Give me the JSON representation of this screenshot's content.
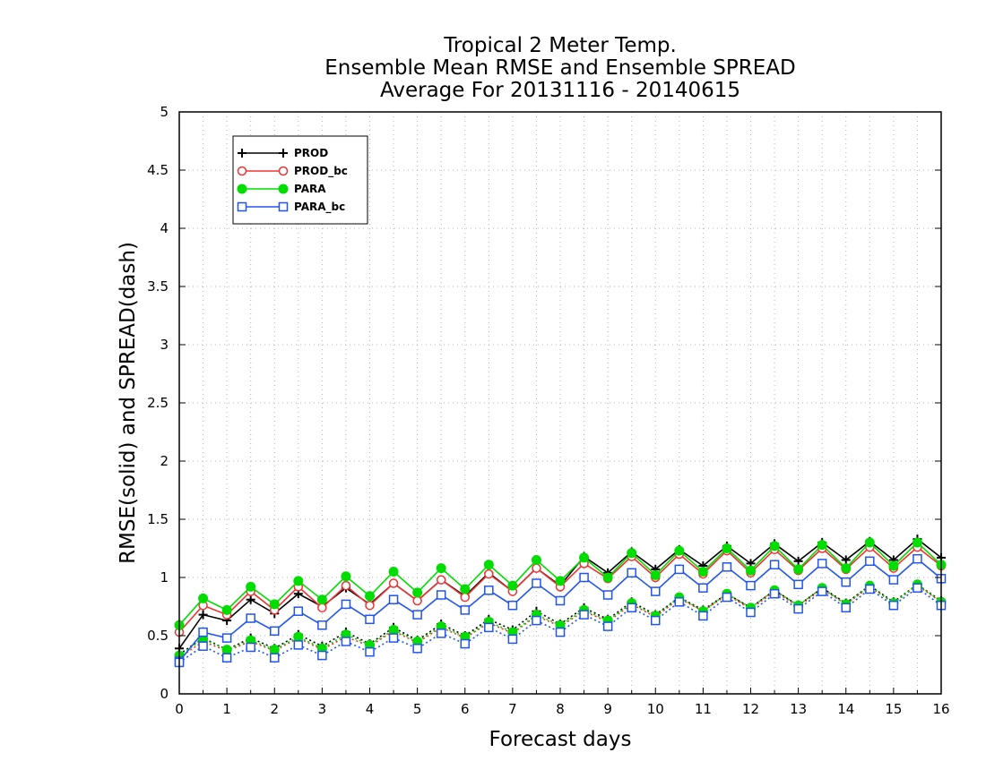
{
  "chart_data": {
    "type": "line",
    "title": [
      "Tropical 2 Meter Temp.",
      "Ensemble Mean RMSE and Ensemble SPREAD",
      "Average For 20131116 - 20140615"
    ],
    "xlabel": "Forecast days",
    "ylabel": "RMSE(solid) and SPREAD(dash)",
    "xlim": [
      0,
      16
    ],
    "ylim": [
      0,
      5
    ],
    "x_ticks": [
      "0",
      "1",
      "2",
      "3",
      "4",
      "5",
      "6",
      "7",
      "8",
      "9",
      "10",
      "11",
      "12",
      "13",
      "14",
      "15",
      "16"
    ],
    "y_ticks": [
      "0",
      "0.5",
      "1",
      "1.5",
      "2",
      "2.5",
      "3",
      "3.5",
      "4",
      "4.5",
      "5"
    ],
    "grid": true,
    "legend_position": "top-left",
    "x": [
      0,
      0.5,
      1,
      1.5,
      2,
      2.5,
      3,
      3.5,
      4,
      4.5,
      5,
      5.5,
      6,
      6.5,
      7,
      7.5,
      8,
      8.5,
      9,
      9.5,
      10,
      10.5,
      11,
      11.5,
      12,
      12.5,
      13,
      13.5,
      14,
      14.5,
      15,
      15.5,
      16
    ],
    "series": [
      {
        "name": "PROD",
        "color": "#000000",
        "marker": "plus",
        "rmse": [
          0.39,
          0.68,
          0.63,
          0.81,
          0.69,
          0.86,
          0.75,
          0.91,
          0.77,
          0.95,
          0.8,
          0.98,
          0.84,
          1.04,
          0.88,
          1.08,
          0.93,
          1.18,
          1.04,
          1.22,
          1.07,
          1.24,
          1.1,
          1.27,
          1.12,
          1.29,
          1.14,
          1.3,
          1.15,
          1.31,
          1.15,
          1.33,
          1.17
        ],
        "spread": [
          0.34,
          0.48,
          0.38,
          0.48,
          0.39,
          0.51,
          0.41,
          0.53,
          0.43,
          0.57,
          0.46,
          0.6,
          0.5,
          0.64,
          0.55,
          0.71,
          0.6,
          0.74,
          0.64,
          0.79,
          0.68,
          0.83,
          0.72,
          0.86,
          0.74,
          0.89,
          0.76,
          0.91,
          0.78,
          0.93,
          0.79,
          0.94,
          0.8
        ]
      },
      {
        "name": "PROD_bc",
        "color": "#ee3333",
        "marker": "circle",
        "rmse": [
          0.53,
          0.76,
          0.68,
          0.88,
          0.72,
          0.92,
          0.74,
          0.93,
          0.76,
          0.95,
          0.8,
          0.98,
          0.83,
          1.03,
          0.88,
          1.08,
          0.92,
          1.12,
          0.99,
          1.18,
          1.0,
          1.2,
          1.03,
          1.23,
          1.04,
          1.24,
          1.06,
          1.25,
          1.07,
          1.26,
          1.08,
          1.26,
          1.1
        ],
        "spread": [
          0.31,
          0.45,
          0.37,
          0.45,
          0.37,
          0.48,
          0.38,
          0.49,
          0.41,
          0.54,
          0.44,
          0.57,
          0.48,
          0.61,
          0.52,
          0.67,
          0.58,
          0.71,
          0.62,
          0.77,
          0.66,
          0.82,
          0.71,
          0.85,
          0.73,
          0.88,
          0.75,
          0.9,
          0.77,
          0.92,
          0.78,
          0.93,
          0.79
        ]
      },
      {
        "name": "PARA",
        "color": "#00dd00",
        "marker": "filled-circle",
        "rmse": [
          0.59,
          0.82,
          0.72,
          0.92,
          0.77,
          0.97,
          0.81,
          1.01,
          0.84,
          1.05,
          0.87,
          1.08,
          0.9,
          1.11,
          0.93,
          1.15,
          0.97,
          1.17,
          1.0,
          1.21,
          1.02,
          1.23,
          1.05,
          1.25,
          1.06,
          1.27,
          1.07,
          1.28,
          1.08,
          1.3,
          1.1,
          1.3,
          1.11
        ],
        "spread": [
          0.33,
          0.47,
          0.38,
          0.46,
          0.38,
          0.49,
          0.39,
          0.51,
          0.42,
          0.55,
          0.45,
          0.58,
          0.49,
          0.62,
          0.53,
          0.68,
          0.59,
          0.72,
          0.63,
          0.78,
          0.67,
          0.83,
          0.71,
          0.86,
          0.74,
          0.89,
          0.76,
          0.91,
          0.77,
          0.93,
          0.78,
          0.94,
          0.79
        ]
      },
      {
        "name": "PARA_bc",
        "color": "#2255ee",
        "marker": "square",
        "rmse": [
          0.28,
          0.53,
          0.48,
          0.65,
          0.54,
          0.71,
          0.59,
          0.77,
          0.64,
          0.81,
          0.68,
          0.85,
          0.72,
          0.89,
          0.76,
          0.95,
          0.8,
          1.0,
          0.85,
          1.04,
          0.88,
          1.07,
          0.91,
          1.09,
          0.93,
          1.11,
          0.94,
          1.12,
          0.96,
          1.14,
          0.98,
          1.16,
          0.99
        ],
        "spread": [
          0.27,
          0.41,
          0.31,
          0.4,
          0.31,
          0.42,
          0.33,
          0.45,
          0.36,
          0.48,
          0.39,
          0.52,
          0.43,
          0.57,
          0.47,
          0.63,
          0.53,
          0.68,
          0.58,
          0.74,
          0.63,
          0.79,
          0.67,
          0.83,
          0.7,
          0.86,
          0.73,
          0.88,
          0.74,
          0.9,
          0.76,
          0.91,
          0.76
        ]
      }
    ]
  }
}
